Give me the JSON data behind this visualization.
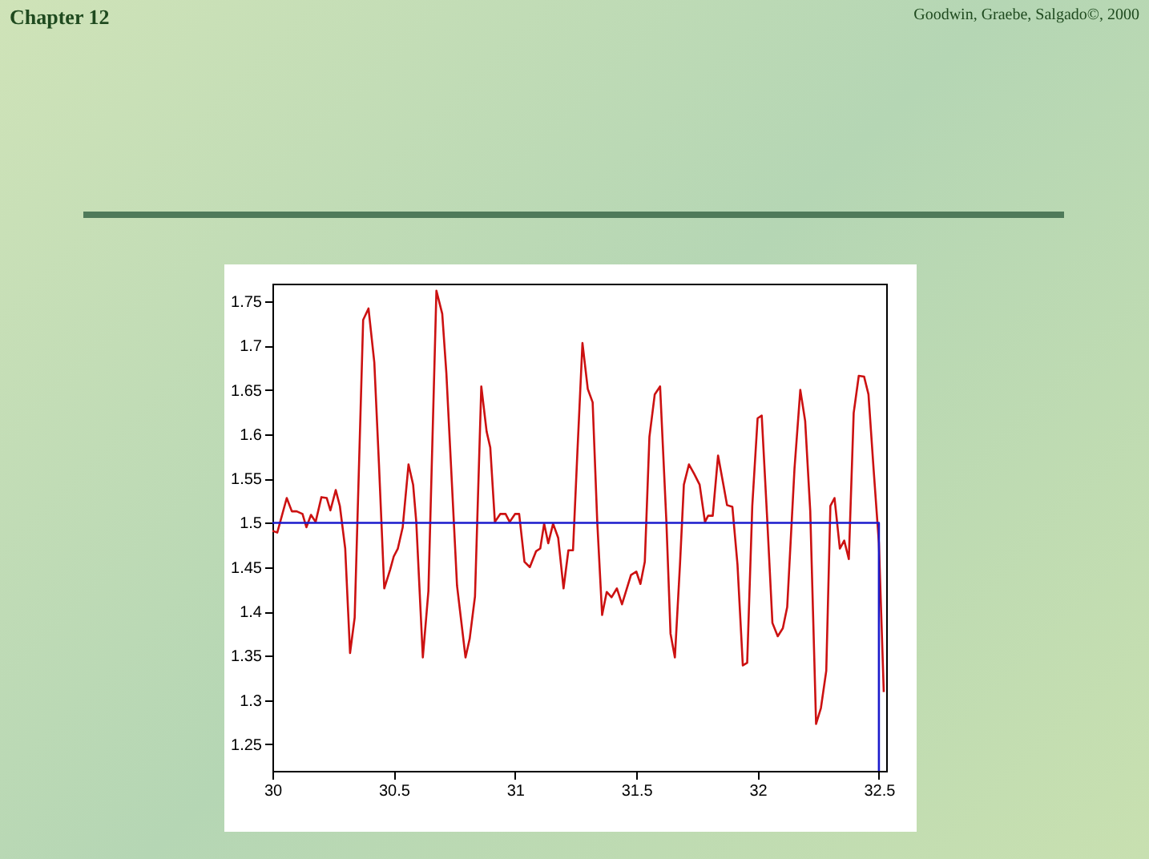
{
  "chart_data": {
    "type": "line",
    "annotations": [
      "Chapter 12",
      "Goodwin, Graebe, Salgado©, 2000"
    ],
    "xlim": [
      30,
      32.53
    ],
    "xticks": [
      30,
      30.5,
      31,
      31.5,
      32,
      32.5
    ],
    "ylim": [
      1.22,
      1.77
    ],
    "yticks": [
      1.25,
      1.3,
      1.35,
      1.4,
      1.45,
      1.5,
      1.55,
      1.6,
      1.65,
      1.7,
      1.75
    ],
    "grid": false,
    "series": [
      {
        "color": "#cc1111",
        "x": [
          30,
          30.02,
          30.059,
          30.08,
          30.1,
          30.124,
          30.14,
          30.159,
          30.178,
          30.202,
          30.224,
          30.239,
          30.261,
          30.278,
          30.3,
          30.32,
          30.339,
          30.374,
          30.396,
          30.42,
          30.439,
          30.461,
          30.485,
          30.5,
          30.517,
          30.537,
          30.561,
          30.58,
          30.593,
          30.62,
          30.643,
          30.676,
          30.7,
          30.717,
          30.761,
          30.796,
          30.813,
          30.835,
          30.861,
          30.883,
          30.898,
          30.917,
          30.939,
          30.961,
          30.978,
          31.0,
          31.017,
          31.039,
          31.061,
          31.087,
          31.104,
          31.12,
          31.137,
          31.157,
          31.178,
          31.2,
          31.22,
          31.239,
          31.257,
          31.278,
          31.3,
          31.32,
          31.339,
          31.359,
          31.378,
          31.398,
          31.42,
          31.441,
          31.461,
          31.478,
          31.5,
          31.517,
          31.535,
          31.554,
          31.576,
          31.598,
          31.624,
          31.641,
          31.659,
          31.68,
          31.696,
          31.717,
          31.739,
          31.761,
          31.783,
          31.796,
          31.815,
          31.837,
          31.859,
          31.874,
          31.896,
          31.917,
          31.939,
          31.957,
          31.978,
          32.0,
          32.017,
          32.039,
          32.061,
          32.083,
          32.104,
          32.122,
          32.152,
          32.176,
          32.196,
          32.217,
          32.241,
          32.261,
          32.283,
          32.3,
          32.317,
          32.339,
          32.357,
          32.376,
          32.396,
          32.417,
          32.439,
          32.457,
          32.478,
          32.5,
          32.52
        ],
        "values": [
          1.491,
          1.489,
          1.528,
          1.513,
          1.513,
          1.51,
          1.495,
          1.509,
          1.501,
          1.529,
          1.528,
          1.514,
          1.537,
          1.519,
          1.471,
          1.353,
          1.393,
          1.729,
          1.742,
          1.681,
          1.567,
          1.426,
          1.447,
          1.462,
          1.471,
          1.495,
          1.566,
          1.543,
          1.501,
          1.348,
          1.423,
          1.762,
          1.736,
          1.669,
          1.429,
          1.348,
          1.369,
          1.417,
          1.654,
          1.603,
          1.585,
          1.501,
          1.51,
          1.51,
          1.501,
          1.51,
          1.51,
          1.456,
          1.45,
          1.468,
          1.471,
          1.499,
          1.477,
          1.499,
          1.483,
          1.426,
          1.469,
          1.469,
          1.579,
          1.703,
          1.651,
          1.636,
          1.501,
          1.396,
          1.422,
          1.416,
          1.426,
          1.408,
          1.426,
          1.441,
          1.445,
          1.431,
          1.456,
          1.597,
          1.645,
          1.654,
          1.501,
          1.375,
          1.348,
          1.453,
          1.543,
          1.566,
          1.555,
          1.543,
          1.501,
          1.508,
          1.508,
          1.576,
          1.543,
          1.52,
          1.518,
          1.453,
          1.339,
          1.342,
          1.519,
          1.618,
          1.621,
          1.507,
          1.387,
          1.372,
          1.381,
          1.405,
          1.561,
          1.65,
          1.615,
          1.513,
          1.273,
          1.291,
          1.333,
          1.519,
          1.528,
          1.471,
          1.48,
          1.459,
          1.624,
          1.666,
          1.665,
          1.645,
          1.561,
          1.477,
          1.309
        ]
      },
      {
        "color": "#1a1acc",
        "x": [
          30,
          32.5,
          32.5
        ],
        "values": [
          1.5,
          1.5,
          1.22
        ]
      }
    ]
  }
}
